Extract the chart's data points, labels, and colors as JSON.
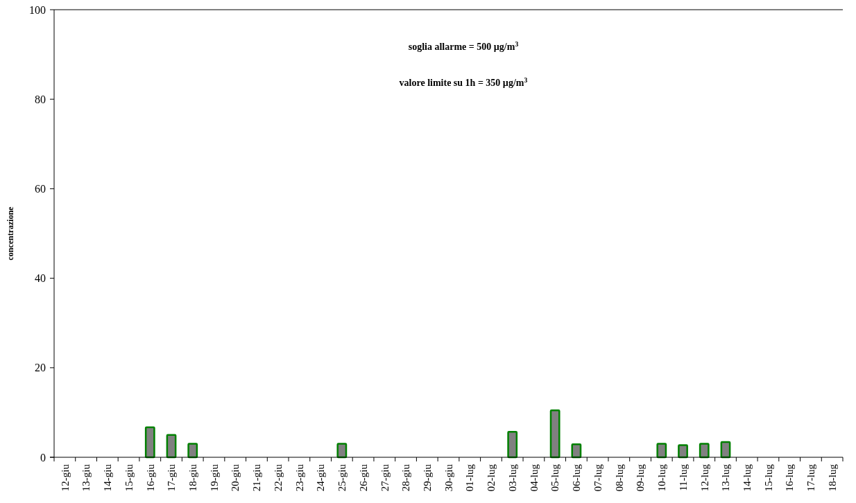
{
  "chart_data": {
    "type": "bar",
    "ylabel": "concentrazione",
    "categories": [
      "12-giu",
      "13-giu",
      "14-giu",
      "15-giu",
      "16-giu",
      "17-giu",
      "18-giu",
      "19-giu",
      "20-giu",
      "21-giu",
      "22-giu",
      "23-giu",
      "24-giu",
      "25-giu",
      "26-giu",
      "27-giu",
      "28-giu",
      "29-giu",
      "30-giu",
      "01-lug",
      "02-lug",
      "03-lug",
      "04-lug",
      "05-lug",
      "06-lug",
      "07-lug",
      "08-lug",
      "09-lug",
      "10-lug",
      "11-lug",
      "12-lug",
      "13-lug",
      "14-lug",
      "15-lug",
      "16-lug",
      "17-lug",
      "18-lug"
    ],
    "values": [
      null,
      null,
      null,
      null,
      6.7,
      5.0,
      3.0,
      null,
      null,
      null,
      null,
      null,
      null,
      3.0,
      null,
      null,
      null,
      null,
      null,
      null,
      null,
      5.7,
      null,
      10.5,
      2.9,
      null,
      null,
      null,
      3.0,
      2.7,
      3.0,
      3.4,
      null,
      null,
      null,
      null,
      null
    ],
    "color": "#808080",
    "ylim": [
      0,
      100
    ],
    "yticks": [
      0,
      20,
      40,
      60,
      80,
      100
    ],
    "grid": false,
    "annotations": [
      "soglia allarme = 500 µg/m$^{3}$",
      "valore limite su 1h = 350 µg/m$^{3}$"
    ]
  }
}
